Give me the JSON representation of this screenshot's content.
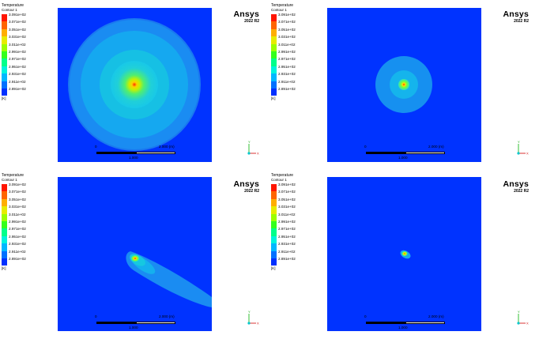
{
  "panels": [
    {
      "legend": {
        "title": "Temperature",
        "subtitle": "Contour 1",
        "values": [
          "3.091e+02",
          "3.071e+02",
          "3.051e+02",
          "3.031e+02",
          "3.011e+02",
          "2.991e+02",
          "2.971e+02",
          "2.951e+02",
          "2.931e+02",
          "2.911e+02",
          "2.891e+02"
        ],
        "unit": "[K]"
      },
      "brand": {
        "name": "Ansys",
        "version": "2022 R2"
      },
      "scale": {
        "zero": "0",
        "full": "2.000  (m)",
        "mid": "1.000"
      }
    },
    {
      "legend": {
        "title": "Temperature",
        "subtitle": "Contour 1",
        "values": [
          "3.091e+02",
          "3.071e+02",
          "3.051e+02",
          "3.031e+02",
          "3.011e+02",
          "2.991e+02",
          "2.971e+02",
          "2.951e+02",
          "2.931e+02",
          "2.911e+02",
          "2.891e+02"
        ],
        "unit": "[K]"
      },
      "brand": {
        "name": "Ansys",
        "version": "2022 R2"
      },
      "scale": {
        "zero": "0",
        "full": "2.000  (m)",
        "mid": "1.000"
      }
    },
    {
      "legend": {
        "title": "Temperature",
        "subtitle": "Contour 1",
        "values": [
          "3.091e+02",
          "3.071e+02",
          "3.051e+02",
          "3.031e+02",
          "3.011e+02",
          "2.991e+02",
          "2.971e+02",
          "2.951e+02",
          "2.931e+02",
          "2.911e+02",
          "2.891e+02"
        ],
        "unit": "[K]"
      },
      "brand": {
        "name": "Ansys",
        "version": "2022 R2"
      },
      "scale": {
        "zero": "0",
        "full": "2.000  (m)",
        "mid": "1.000"
      }
    },
    {
      "legend": {
        "title": "Temperature",
        "subtitle": "Contour 1",
        "values": [
          "3.091e+02",
          "3.071e+02",
          "3.051e+02",
          "3.031e+02",
          "3.011e+02",
          "2.991e+02",
          "2.971e+02",
          "2.951e+02",
          "2.931e+02",
          "2.911e+02",
          "2.891e+02"
        ],
        "unit": "[K]"
      },
      "brand": {
        "name": "Ansys",
        "version": "2022 R2"
      },
      "scale": {
        "zero": "0",
        "full": "2.000  (m)",
        "mid": "1.000"
      }
    }
  ],
  "triad_labels": {
    "x": "X",
    "y": "Y",
    "z": "Z"
  },
  "colors": {
    "background": "#0033ff",
    "legend_scale": [
      "#ff0000",
      "#ff5a00",
      "#ffa500",
      "#e8e000",
      "#a8f000",
      "#4cff00",
      "#00ff60",
      "#00ffc0",
      "#00e0ff",
      "#0090ff",
      "#0033ff"
    ]
  }
}
